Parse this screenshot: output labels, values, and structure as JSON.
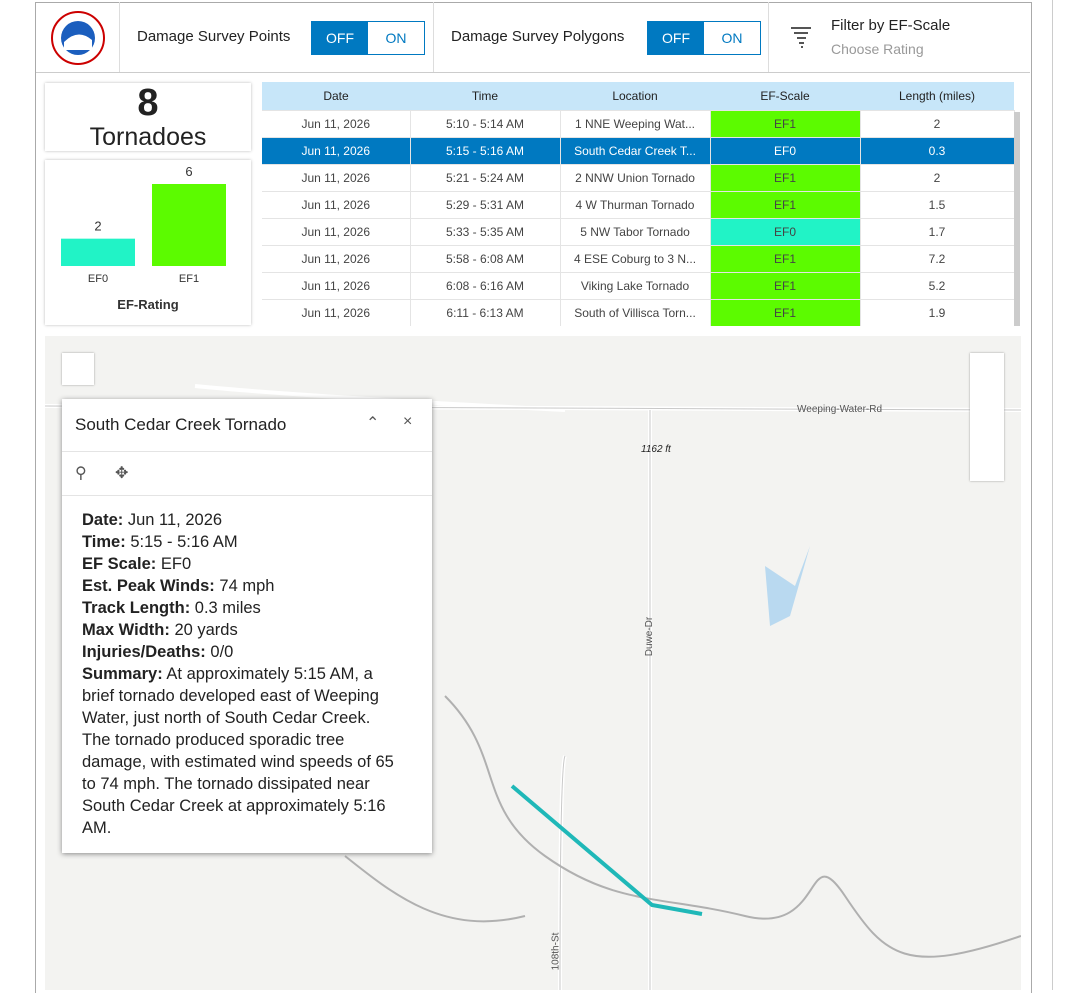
{
  "header": {
    "points_label": "Damage Survey Points",
    "polygons_label": "Damage Survey Polygons",
    "off": "OFF",
    "on": "ON",
    "filter_title": "Filter by EF-Scale",
    "filter_placeholder": "Choose Rating"
  },
  "summary": {
    "count": 8,
    "label": "Tornadoes"
  },
  "ef_chart": {
    "title": "EF-Rating",
    "categories": [
      "EF0",
      "EF1"
    ],
    "values": [
      2,
      6
    ],
    "colors": [
      "#21f3c6",
      "#5cfb00"
    ]
  },
  "table": {
    "columns": [
      "Date",
      "Time",
      "Location",
      "EF-Scale",
      "Length (miles)"
    ],
    "selected_row": 1,
    "ef_colors": {
      "EF0": "#21f3c6",
      "EF1": "#5cfb00"
    },
    "rows": [
      [
        "Jun 11, 2026",
        "5:10 - 5:14 AM",
        "1 NNE Weeping Wat...",
        "EF1",
        2
      ],
      [
        "Jun 11, 2026",
        "5:15 - 5:16 AM",
        "South Cedar Creek T...",
        "EF0",
        0.3
      ],
      [
        "Jun 11, 2026",
        "5:21 - 5:24 AM",
        "2 NNW Union Tornado",
        "EF1",
        2
      ],
      [
        "Jun 11, 2026",
        "5:29 - 5:31 AM",
        "4 W Thurman Tornado",
        "EF1",
        1.5
      ],
      [
        "Jun 11, 2026",
        "5:33 - 5:35 AM",
        "5 NW Tabor Tornado",
        "EF0",
        1.7
      ],
      [
        "Jun 11, 2026",
        "5:58 - 6:08 AM",
        "4 ESE Coburg to 3 N...",
        "EF1",
        7.2
      ],
      [
        "Jun 11, 2026",
        "6:08 - 6:16 AM",
        "Viking Lake Tornado",
        "EF1",
        5.2
      ],
      [
        "Jun 11, 2026",
        "6:11 - 6:13 AM",
        "South of Villisca Torn...",
        "EF1",
        1.9
      ]
    ]
  },
  "map": {
    "labels": [
      "Weeping-Water-Rd",
      "1162 ft",
      "Duwe-Dr",
      "108th-St"
    ]
  },
  "popup": {
    "title": "South Cedar Creek Tornado",
    "fields": [
      {
        "label": "Date:",
        "value": "Jun 11, 2026"
      },
      {
        "label": "Time:",
        "value": "5:15 - 5:16 AM"
      },
      {
        "label": "EF Scale:",
        "value": "EF0"
      },
      {
        "label": "Est. Peak Winds:",
        "value": "74 mph"
      },
      {
        "label": "Track Length:",
        "value": "0.3 miles"
      },
      {
        "label": "Max Width:",
        "value": "20 yards"
      },
      {
        "label": "Injuries/Deaths:",
        "value": "0/0"
      },
      {
        "label": "Summary:",
        "value": "At approximately 5:15 AM, a brief tornado developed east of Weeping Water, just north of South Cedar Creek. The tornado produced sporadic tree damage, with estimated wind speeds of 65 to 74 mph. The tornado dissipated near South Cedar Creek at approximately 5:16 AM."
      }
    ]
  }
}
